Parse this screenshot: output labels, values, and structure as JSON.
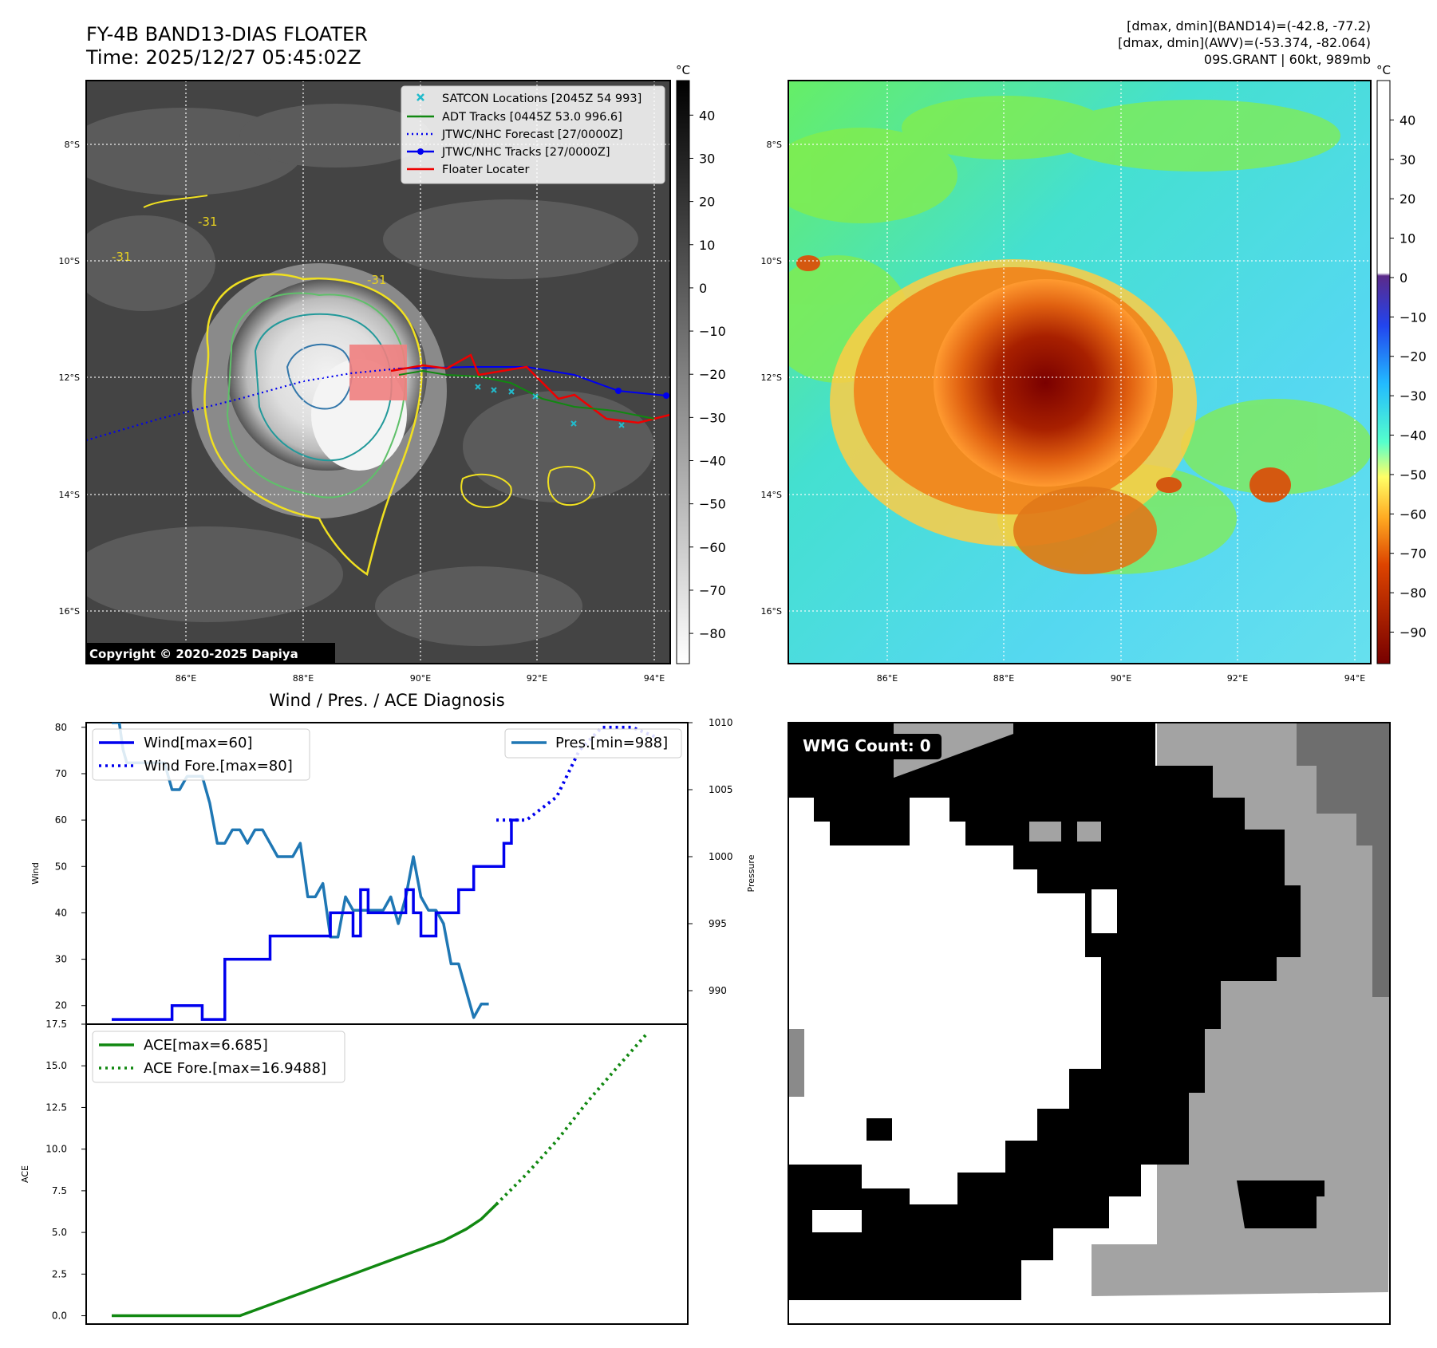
{
  "header": {
    "title_line1": "FY-4B BAND13-DIAS FLOATER",
    "title_line2": "Time: 2025/12/27 05:45:02Z",
    "info_line1": "[dmax, dmin](BAND14)=(-42.8, -77.2)",
    "info_line2": "[dmax, dmin](AWV)=(-53.374, -82.064)",
    "info_line3": "09S.GRANT | 60kt, 989mb",
    "unit": "°C"
  },
  "map_panel": {
    "copyright": "Copyright © 2020-2025 Dapiya",
    "lat_labels": [
      "8°S",
      "10°S",
      "12°S",
      "14°S",
      "16°S"
    ],
    "lon_labels": [
      "86°E",
      "88°E",
      "90°E",
      "92°E",
      "94°E"
    ],
    "contour_label": "-31",
    "legend": [
      {
        "label": "SATCON Locations [2045Z 54 993]",
        "color": "#22bbcc",
        "style": "x-marker"
      },
      {
        "label": "ADT Tracks [0445Z 53.0 996.6]",
        "color": "#118811",
        "style": "solid"
      },
      {
        "label": "JTWC/NHC Forecast [27/0000Z]",
        "color": "#0000ee",
        "style": "dotted"
      },
      {
        "label": "JTWC/NHC Tracks [27/0000Z]",
        "color": "#0000ee",
        "style": "solid-dot"
      },
      {
        "label": "Floater Locater",
        "color": "#ee0000",
        "style": "solid"
      }
    ],
    "colorbar_ticks": [
      "40",
      "30",
      "20",
      "10",
      "0",
      "−10",
      "−20",
      "−30",
      "−40",
      "−50",
      "−60",
      "−70",
      "−80"
    ]
  },
  "awv_panel": {
    "colorbar_ticks": [
      "40",
      "30",
      "20",
      "10",
      "0",
      "−10",
      "−20",
      "−30",
      "−40",
      "−50",
      "−60",
      "−70",
      "−80",
      "−90"
    ],
    "colors": {
      "warm": "#8b0000",
      "mid": "#ff8c00",
      "cool": "#44eeee",
      "green": "#55dd55"
    }
  },
  "diagnosis": {
    "title": "Wind / Pres. / ACE Diagnosis",
    "wind_ylabel": "Wind",
    "pres_ylabel": "Pressure",
    "ace_ylabel": "ACE",
    "wind_ticks": [
      "80",
      "70",
      "60",
      "50",
      "40",
      "30",
      "20"
    ],
    "pres_ticks": [
      "1010",
      "1005",
      "1000",
      "995",
      "990"
    ],
    "ace_ticks": [
      "17.5",
      "15.0",
      "12.5",
      "10.0",
      "7.5",
      "5.0",
      "2.5",
      "0.0"
    ],
    "legend_wind": "Wind[max=60]",
    "legend_wind_fore": "Wind Fore.[max=80]",
    "legend_pres": "Pres.[min=988]",
    "legend_ace": "ACE[max=6.685]",
    "legend_ace_fore": "ACE Fore.[max=16.9488]"
  },
  "wmg_panel": {
    "label": "WMG Count: 0"
  },
  "chart_data": [
    {
      "type": "line",
      "name": "wind",
      "ylim": [
        16,
        81
      ],
      "x": [
        0,
        1,
        2,
        3,
        4,
        5,
        6,
        7,
        8,
        9,
        10,
        11,
        12,
        13,
        14,
        15,
        16,
        17,
        18,
        19,
        20,
        21,
        22,
        23,
        24,
        25,
        26,
        27,
        28,
        29,
        30,
        31,
        32,
        33,
        34,
        35,
        36,
        37,
        38,
        39,
        40,
        41,
        42,
        43,
        44,
        45,
        46,
        47,
        48,
        49
      ],
      "series": [
        {
          "name": "Wind[max=60]",
          "values": [
            17,
            17,
            17,
            17,
            17,
            17,
            17,
            17,
            20,
            20,
            20,
            20,
            17,
            17,
            17,
            30,
            30,
            30,
            30,
            30,
            30,
            35,
            35,
            35,
            35,
            35,
            35,
            35,
            35,
            40,
            40,
            40,
            35,
            45,
            40,
            40,
            40,
            40,
            40,
            45,
            40,
            35,
            35,
            40,
            40,
            40,
            45,
            45,
            50,
            50
          ]
        },
        {
          "name": "Wind Fore.[max=80]",
          "x": [
            51,
            55,
            59,
            62,
            65,
            69,
            72
          ],
          "values": [
            60,
            60,
            65,
            75,
            80,
            80,
            78
          ]
        }
      ],
      "tail_x": [
        52,
        53,
        54
      ],
      "tail_values": [
        55,
        60,
        60
      ]
    },
    {
      "type": "line",
      "name": "pressure",
      "ylim": [
        987.5,
        1010
      ],
      "series": [
        {
          "name": "Pres.[min=988]",
          "x": [
            0,
            1,
            1.5,
            2,
            3,
            4,
            5,
            6,
            7,
            8,
            9,
            10,
            11,
            12,
            13,
            14,
            15,
            16,
            17,
            18,
            19,
            20,
            21,
            22,
            23,
            24,
            25,
            26,
            27,
            28,
            29,
            30,
            31,
            32,
            33,
            34,
            35,
            36,
            37,
            38,
            39,
            40,
            41,
            42,
            43,
            44,
            45,
            46,
            47,
            48,
            49,
            50
          ],
          "values": [
            1010,
            1010,
            1008,
            1007,
            1007,
            1007,
            1007,
            1007,
            1007,
            1005,
            1005,
            1006,
            1006,
            1006,
            1004,
            1001,
            1001,
            1002,
            1002,
            1001,
            1002,
            1002,
            1001,
            1000,
            1000,
            1000,
            1001,
            997,
            997,
            998,
            994,
            994,
            997,
            996,
            996,
            996,
            996,
            996,
            997,
            995,
            997,
            1000,
            997,
            996,
            996,
            995,
            992,
            992,
            990,
            988,
            989,
            989
          ]
        }
      ]
    },
    {
      "type": "line",
      "name": "ace",
      "ylim": [
        -0.5,
        17.5
      ],
      "series": [
        {
          "name": "ACE[max=6.685]",
          "x": [
            0,
            10,
            17,
            20,
            23,
            26,
            29,
            32,
            35,
            38,
            41,
            44,
            47,
            49,
            51
          ],
          "values": [
            0,
            0,
            0,
            0.5,
            1.0,
            1.5,
            2.0,
            2.5,
            3.0,
            3.5,
            4.0,
            4.5,
            5.2,
            5.8,
            6.685
          ]
        },
        {
          "name": "ACE Fore.[max=16.9488]",
          "x": [
            51,
            55,
            59,
            63,
            67,
            71
          ],
          "values": [
            6.685,
            8.5,
            10.5,
            12.8,
            14.9,
            16.9488
          ]
        }
      ]
    }
  ]
}
